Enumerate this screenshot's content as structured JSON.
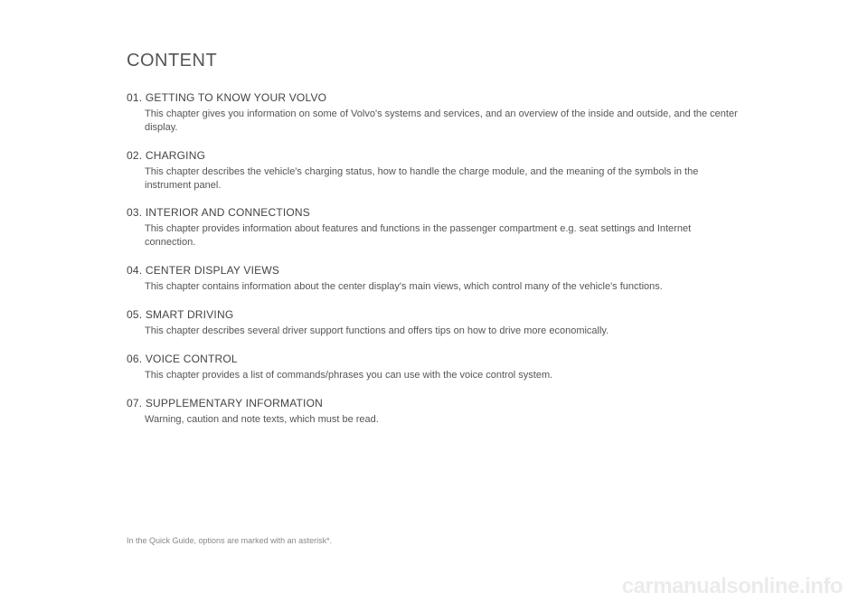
{
  "title": "CONTENT",
  "sections": [
    {
      "num": "01.",
      "title": "GETTING TO KNOW YOUR VOLVO",
      "desc": "This chapter gives you information on some of Volvo's systems and services, and an overview of the inside and outside, and the center display."
    },
    {
      "num": "02.",
      "title": "CHARGING",
      "desc": "This chapter describes the vehicle's charging status, how to handle the charge module, and the meaning of the symbols in the instrument panel."
    },
    {
      "num": "03.",
      "title": "INTERIOR AND CONNECTIONS",
      "desc": "This chapter provides information about features and functions in the passenger compartment e.g. seat settings and Internet connection."
    },
    {
      "num": "04.",
      "title": "CENTER DISPLAY VIEWS",
      "desc": "This chapter contains information about the center display's main views, which control many of the vehicle's functions."
    },
    {
      "num": "05.",
      "title": "SMART DRIVING",
      "desc": "This chapter describes several driver support functions and offers tips on how to drive more economically."
    },
    {
      "num": "06.",
      "title": "VOICE CONTROL",
      "desc": "This chapter provides a list of commands/phrases you can use with the voice control system."
    },
    {
      "num": "07.",
      "title": "SUPPLEMENTARY INFORMATION",
      "desc": "Warning, caution and note texts, which must be read."
    }
  ],
  "footnote": "In the Quick Guide, options are marked with an asterisk*.",
  "watermark": "carmanualsonline.info",
  "colors": {
    "background": "#ffffff",
    "title_color": "#555555",
    "header_color": "#444444",
    "desc_color": "#555555",
    "footnote_color": "#888888",
    "watermark_color": "rgba(0,0,0,0.08)"
  },
  "typography": {
    "title_fontsize": 20,
    "header_fontsize": 12,
    "desc_fontsize": 11,
    "footnote_fontsize": 9,
    "watermark_fontsize": 24,
    "font_family": "Arial, Helvetica, sans-serif"
  }
}
